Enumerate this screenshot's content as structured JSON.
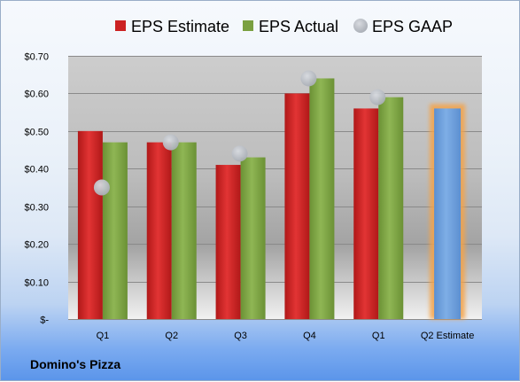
{
  "company_name": "Domino's Pizza",
  "chart_data": {
    "type": "bar",
    "title": "",
    "xlabel": "",
    "ylabel": "",
    "categories": [
      "Q1",
      "Q2",
      "Q3",
      "Q4",
      "Q1",
      "Q2 Estimate"
    ],
    "yticks": [
      0,
      0.1,
      0.2,
      0.3,
      0.4,
      0.5,
      0.6,
      0.7
    ],
    "ytick_labels": [
      "$-",
      "$0.10",
      "$0.20",
      "$0.30",
      "$0.40",
      "$0.50",
      "$0.60",
      "$0.70"
    ],
    "ylim": [
      0,
      0.7
    ],
    "grid": true,
    "legend_position": "top",
    "series": [
      {
        "name": "EPS Estimate",
        "kind": "bar",
        "color": "#cc2222",
        "values": [
          0.5,
          0.47,
          0.41,
          0.6,
          0.56,
          null
        ]
      },
      {
        "name": "EPS Actual",
        "kind": "bar",
        "color": "#7aa040",
        "values": [
          0.47,
          0.47,
          0.43,
          0.64,
          0.59,
          null
        ]
      },
      {
        "name": "EPS GAAP",
        "kind": "point",
        "color": "#b8bcc4",
        "values": [
          0.35,
          0.47,
          0.44,
          0.64,
          0.59,
          null
        ]
      }
    ],
    "forecast": {
      "category": "Q2 Estimate",
      "value": 0.56,
      "color": "#6a9edc",
      "glow_color": "#f5a347"
    }
  }
}
